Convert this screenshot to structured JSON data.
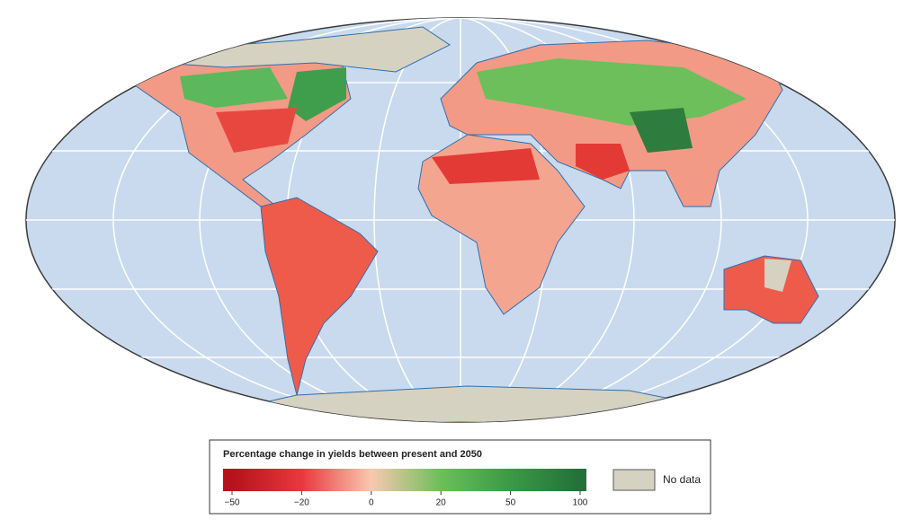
{
  "legend": {
    "title": "Percentage change in yields between present and 2050",
    "ticks": [
      {
        "value": -50,
        "label": "−50"
      },
      {
        "value": -20,
        "label": "−20"
      },
      0,
      20,
      50,
      100
    ],
    "colors": [
      "#b5121b",
      "#e8383d",
      "#f8c9b0",
      "#6cbf5a",
      "#3a9a45",
      "#23703a"
    ],
    "no_data": "No data",
    "no_data_color": "#d6d2c2"
  }
}
